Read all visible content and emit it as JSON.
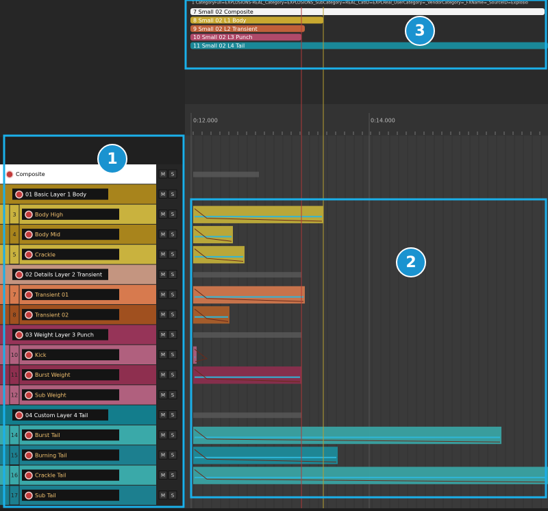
{
  "header": {
    "path_text": "1 CategoryFull=EXPLOSIONS-REAL_Category=EXPLOSIONS_SubCategory=REAL_CatID=EXPLReal_UserCategory=_VendorCategory=_FXName=_SourceID=Explosio"
  },
  "clip_list": [
    "7 Small 02 Composite",
    "8 Small 02 L1 Body",
    "9 Small 02 L2 Transient",
    "10 Small 02 L3 Punch",
    "11 Small 02 L4 Tail"
  ],
  "timeline": {
    "ticks": [
      "0:12.000",
      "0:14.000"
    ]
  },
  "buttons": {
    "mute": "M",
    "solo": "S"
  },
  "tracks": [
    {
      "name": "Composite"
    },
    {
      "name": "01 Basic Layer 1 Body"
    },
    {
      "number": "3",
      "name": "Body High"
    },
    {
      "number": "4",
      "name": "Body Mid"
    },
    {
      "number": "5",
      "name": "Crackle"
    },
    {
      "name": "02 Details Layer 2 Transient"
    },
    {
      "number": "7",
      "name": "Transient 01"
    },
    {
      "number": "8",
      "name": "Transient 02"
    },
    {
      "name": "03 Weight Layer 3 Punch"
    },
    {
      "number": "10",
      "name": "Kick"
    },
    {
      "number": "11",
      "name": "Burst Weight"
    },
    {
      "number": "12",
      "name": "Sub Weight"
    },
    {
      "name": "04 Custom Layer 4 Tail"
    },
    {
      "number": "14",
      "name": "Burst Tail"
    },
    {
      "number": "15",
      "name": "Burning Tail"
    },
    {
      "number": "16",
      "name": "Crackle Tail"
    },
    {
      "number": "17",
      "name": "Sub Tail"
    }
  ],
  "callouts": [
    "1",
    "2",
    "3"
  ]
}
